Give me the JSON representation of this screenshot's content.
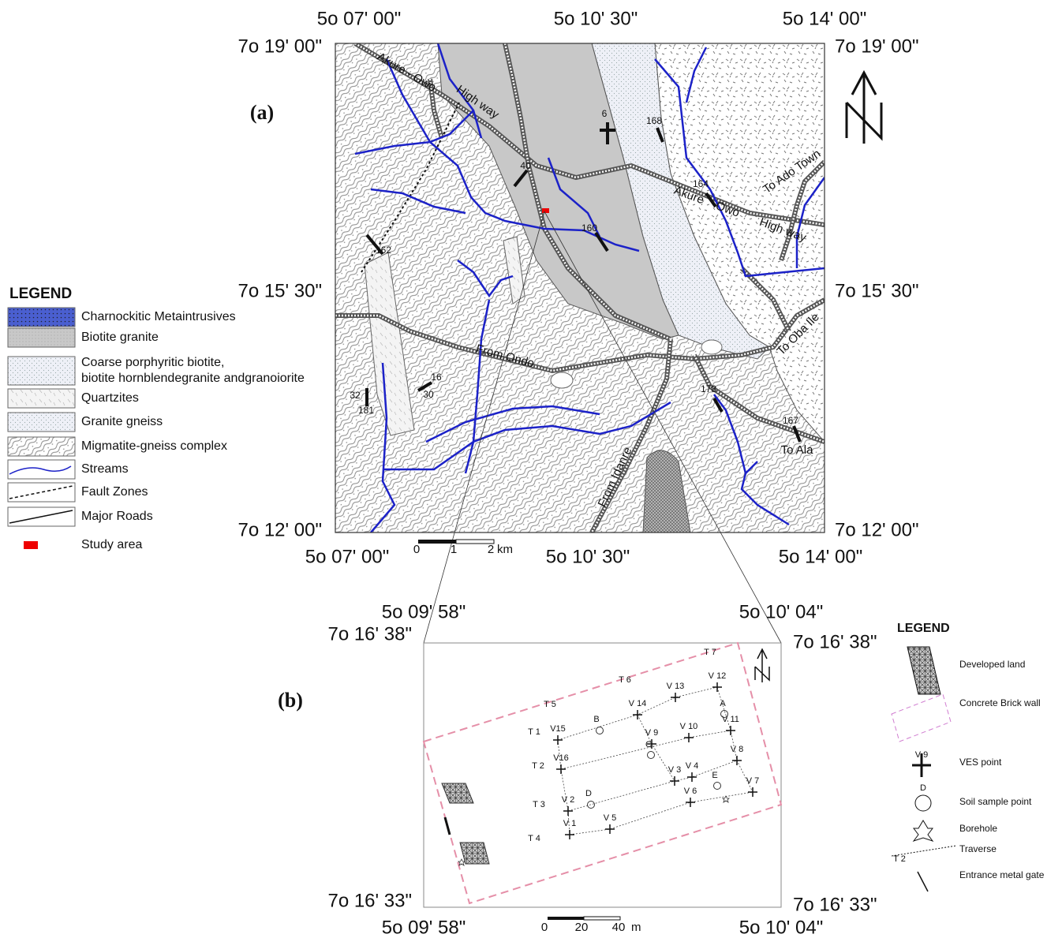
{
  "panel_a": {
    "label": "(a)",
    "coords": {
      "top": [
        "5o 07' 00\"",
        "5o 10' 30\"",
        "5o 14' 00\""
      ],
      "bottom": [
        "5o 07' 00\"",
        "5o 10' 30\"",
        "5o 14' 00\""
      ],
      "left": [
        "7o 19' 00\"",
        "7o 15' 30\"",
        "7o 12' 00\""
      ],
      "right": [
        "7o 19' 00\"",
        "7o 15' 30\"",
        "7o 12' 00\""
      ]
    },
    "annotations": [
      "Akure - Owo",
      "High way",
      "6",
      "168",
      "40",
      "164",
      "Akure",
      "Owo",
      "High way",
      "To Ado Town",
      "160",
      "162",
      "From Ondo",
      "To Oba Ile",
      "16",
      "30",
      "32",
      "181",
      "178",
      "167",
      "To Ala",
      "From Idanre"
    ],
    "scale": {
      "ticks": [
        "0",
        "1",
        "2"
      ],
      "unit": "km"
    },
    "legend": {
      "title": "LEGEND",
      "items": [
        {
          "lines": [
            "Charnockitic Metaintrusives"
          ]
        },
        {
          "lines": [
            "Biotite granite"
          ]
        },
        {
          "lines": [
            "Coarse porphyritic biotite,",
            "biotite hornblendegranite andgranoiorite"
          ]
        },
        {
          "lines": [
            "Quartzites"
          ]
        },
        {
          "lines": [
            "Granite gneiss"
          ]
        },
        {
          "lines": [
            "Migmatite-gneiss complex"
          ]
        },
        {
          "lines": [
            "Streams"
          ]
        },
        {
          "lines": [
            "Fault Zones"
          ]
        },
        {
          "lines": [
            "Major Roads"
          ]
        },
        {
          "lines": [
            "Study area"
          ]
        }
      ]
    }
  },
  "panel_b": {
    "label": "(b)",
    "coords": {
      "top": [
        "5o 09' 58\"",
        "5o 10' 04\""
      ],
      "bottom": [
        "5o 09' 58\"",
        "5o 10' 04\""
      ],
      "left": [
        "7o 16' 38\"",
        "7o 16' 33\""
      ],
      "right": [
        "7o 16' 38\"",
        "7o 16' 33\""
      ]
    },
    "traverses": [
      "T 1",
      "T 2",
      "T 3",
      "T 4",
      "T 5",
      "T 6",
      "T 7"
    ],
    "ves": [
      "V 1",
      "V 2",
      "V 3",
      "V 4",
      "V 5",
      "V 6",
      "V 7",
      "V 8",
      "V 9",
      "V 10",
      "V 11",
      "V 12",
      "V 13",
      "V 14",
      "V15",
      "V16"
    ],
    "soil_points": [
      "A",
      "B",
      "C",
      "D",
      "E"
    ],
    "scale": {
      "ticks": [
        "0",
        "20",
        "40"
      ],
      "unit": "m"
    },
    "legend": {
      "title": "LEGEND",
      "items": [
        "Developed land",
        "Concrete Brick wall",
        "VES point",
        "Soil sample point",
        "Borehole",
        "Traverse",
        "Entrance metal gate"
      ],
      "symbol_labels": [
        "V 9",
        "D",
        "T 2"
      ]
    }
  }
}
